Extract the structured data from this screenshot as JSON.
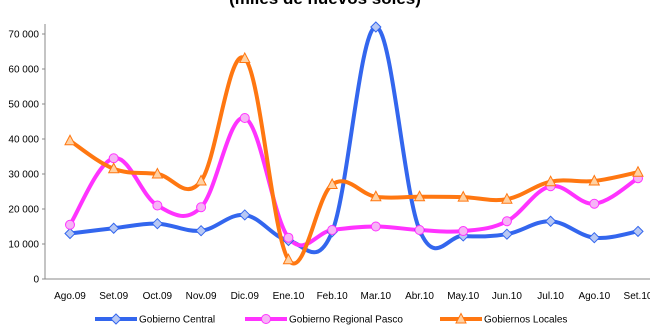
{
  "chart_data": {
    "type": "line",
    "title": "(miles de nuevos soles)",
    "xlabel": "",
    "ylabel": "",
    "ylim": [
      0,
      70000
    ],
    "ytick_labels": [
      "0",
      "10 000",
      "20 000",
      "30 000",
      "40 000",
      "50 000",
      "60 000",
      "70 000"
    ],
    "categories": [
      "Ago.09",
      "Set.09",
      "Oct.09",
      "Nov.09",
      "Dic.09",
      "Ene.10",
      "Feb.10",
      "Mar.10",
      "Abr.10",
      "May.10",
      "Jun.10",
      "Jul.10",
      "Ago.10",
      "Set.10"
    ],
    "grid": false,
    "legend_position": "bottom",
    "series": [
      {
        "name": "Gobierno Central",
        "color": "#3366ee",
        "marker": "diamond",
        "values": [
          13000,
          14500,
          15800,
          13800,
          18300,
          11000,
          13500,
          72000,
          14000,
          12300,
          12800,
          16500,
          11800,
          13600
        ]
      },
      {
        "name": "Gobierno Regional Pasco",
        "color": "#ff33ff",
        "marker": "circle",
        "values": [
          15500,
          34500,
          21000,
          20500,
          46000,
          11800,
          14000,
          15000,
          14000,
          13700,
          16500,
          26500,
          21500,
          28800
        ]
      },
      {
        "name": "Gobiernos Locales",
        "color": "#ff7711",
        "marker": "triangle",
        "values": [
          39500,
          31500,
          30000,
          28000,
          63000,
          5500,
          27000,
          23500,
          23500,
          23400,
          22800,
          27800,
          28000,
          30500
        ]
      }
    ]
  }
}
